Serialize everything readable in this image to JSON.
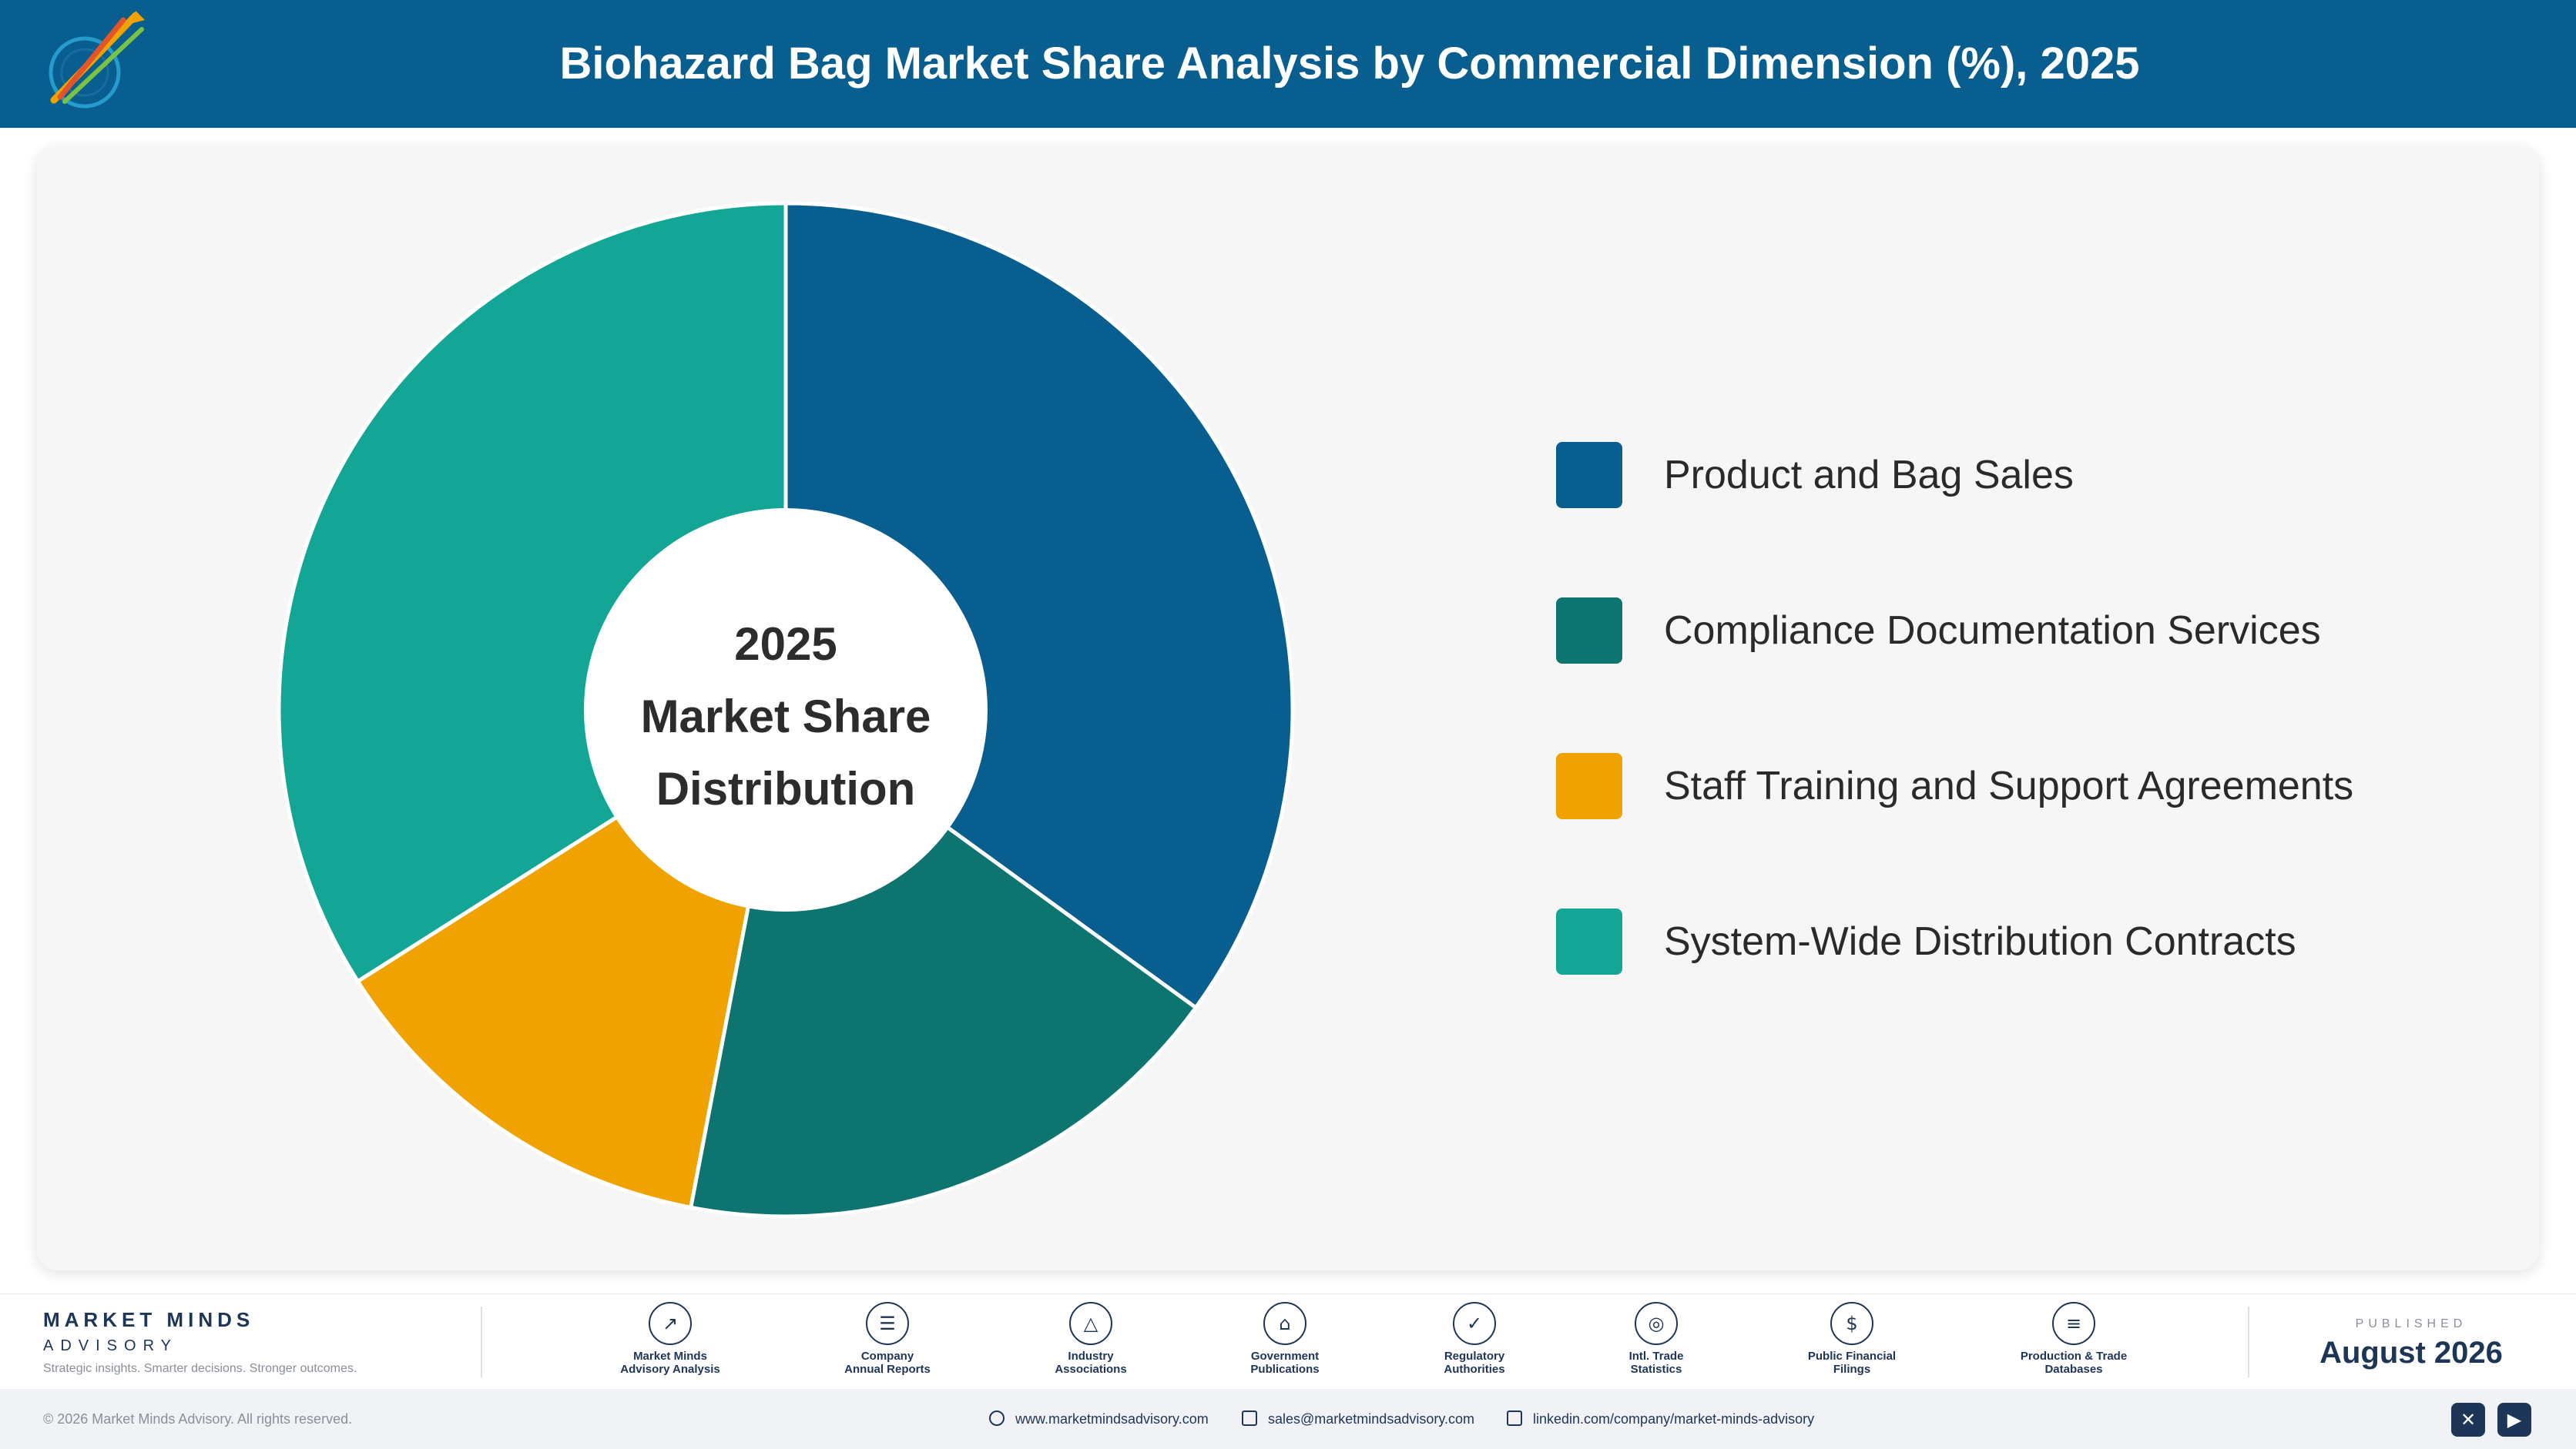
{
  "header": {
    "title": "Biohazard Bag Market Share Analysis by Commercial Dimension (%), 2025"
  },
  "chart_data": {
    "type": "pie",
    "variant": "donut",
    "title": "Biohazard Bag Market Share Analysis by Commercial Dimension (%), 2025",
    "center_label": [
      "2025",
      "Market Share",
      "Distribution"
    ],
    "categories": [
      "Product and Bag Sales",
      "Compliance Documentation Services",
      "Staff Training and Support Agreements",
      "System-Wide Distribution Contracts"
    ],
    "values": [
      35,
      18,
      13,
      34
    ],
    "colors": [
      "#075e8f",
      "#0e7470",
      "#f0a300",
      "#13a595"
    ],
    "legend_position": "right"
  },
  "footer": {
    "brand_name": "MARKET MINDS",
    "brand_sub": "ADVISORY",
    "tagline": "Strategic insights. Smarter decisions. Stronger outcomes.",
    "sources": [
      {
        "line1": "Market Minds",
        "line2": "Advisory Analysis",
        "icon": "trend-chart-icon"
      },
      {
        "line1": "Company",
        "line2": "Annual Reports",
        "icon": "document-icon"
      },
      {
        "line1": "Industry",
        "line2": "Associations",
        "icon": "network-icon"
      },
      {
        "line1": "Government",
        "line2": "Publications",
        "icon": "government-building-icon"
      },
      {
        "line1": "Regulatory",
        "line2": "Authorities",
        "icon": "shield-check-icon"
      },
      {
        "line1": "Intl. Trade",
        "line2": "Statistics",
        "icon": "globe-icon"
      },
      {
        "line1": "Public Financial",
        "line2": "Filings",
        "icon": "dollar-coin-icon"
      },
      {
        "line1": "Production & Trade",
        "line2": "Databases",
        "icon": "database-icon"
      }
    ],
    "published_label": "PUBLISHED",
    "published_date": "August 2026",
    "copyright": "© 2026 Market Minds Advisory. All rights reserved.",
    "website": "www.marketmindsadvisory.com",
    "email": "sales@marketmindsadvisory.com",
    "linkedin": "linkedin.com/company/market-minds-advisory",
    "social": [
      "x-icon",
      "youtube-icon"
    ]
  }
}
